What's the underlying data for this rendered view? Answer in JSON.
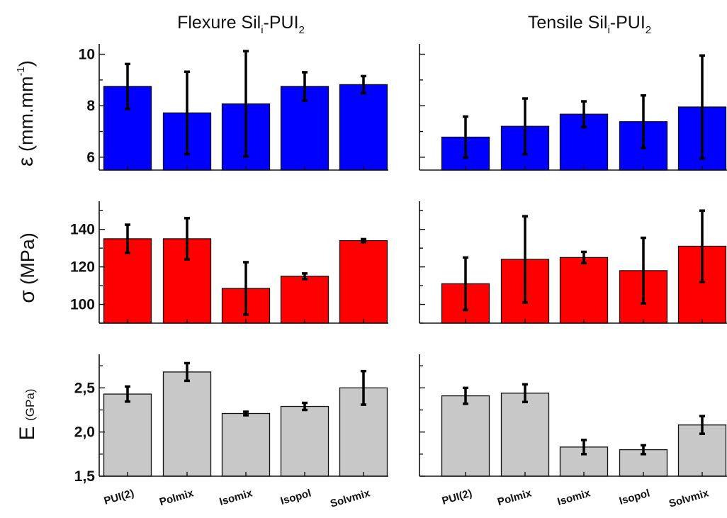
{
  "titles": {
    "left": {
      "main": "Flexure Sil",
      "sub": "i",
      "mid": "-PUI",
      "end": "2"
    },
    "right": {
      "main": "Tensile Sil",
      "sub": "i",
      "mid": "-PUI",
      "end": "2"
    }
  },
  "ylabels": {
    "strain": {
      "symbol": "ε",
      "unit": "(mm.mm",
      "sup": "-1",
      "close": ")"
    },
    "stress": {
      "symbol": "σ",
      "unit": "(MPa)"
    },
    "modulus": {
      "symbol": "E",
      "unit": "(GPa)"
    }
  },
  "colors": {
    "strain": "#0000ff",
    "stress": "#ff0000",
    "modulus": "#c8c8c8"
  },
  "chart_data": [
    {
      "type": "bar",
      "test": "Flexure",
      "quantity": "strain",
      "categories": [
        "PUI(2)",
        "Polmix",
        "Isomix",
        "Isopol",
        "Solvmix"
      ],
      "values": [
        8.75,
        7.72,
        8.07,
        8.75,
        8.82
      ],
      "errors": [
        0.87,
        1.6,
        2.05,
        0.55,
        0.33
      ],
      "ylim": [
        5.5,
        10.4
      ],
      "yticks": [
        6,
        8,
        10
      ],
      "ytick_labels": [
        "6",
        "8",
        "10"
      ]
    },
    {
      "type": "bar",
      "test": "Tensile",
      "quantity": "strain",
      "categories": [
        "PUI(2)",
        "Polmix",
        "Isomix",
        "Isopol",
        "Solvmix"
      ],
      "values": [
        6.78,
        7.2,
        7.67,
        7.38,
        7.95
      ],
      "errors": [
        0.8,
        1.08,
        0.5,
        1.02,
        2.0
      ],
      "ylim": [
        5.5,
        10.4
      ],
      "yticks": [
        6,
        8,
        10
      ],
      "ytick_labels": []
    },
    {
      "type": "bar",
      "test": "Flexure",
      "quantity": "stress",
      "categories": [
        "PUI(2)",
        "Polmix",
        "Isomix",
        "Isopol",
        "Solvmix"
      ],
      "values": [
        135,
        135,
        108.5,
        115,
        134
      ],
      "errors": [
        7.5,
        11,
        14,
        1.5,
        0.8
      ],
      "ylim": [
        90,
        155
      ],
      "yticks": [
        100,
        120,
        140
      ],
      "ytick_labels": [
        "100",
        "120",
        "140"
      ]
    },
    {
      "type": "bar",
      "test": "Tensile",
      "quantity": "stress",
      "categories": [
        "PUI(2)",
        "Polmix",
        "Isomix",
        "Isopol",
        "Solvmix"
      ],
      "values": [
        111,
        124,
        125,
        118,
        131
      ],
      "errors": [
        14,
        23,
        3,
        17.5,
        19
      ],
      "ylim": [
        90,
        155
      ],
      "yticks": [
        100,
        120,
        140
      ],
      "ytick_labels": []
    },
    {
      "type": "bar",
      "test": "Flexure",
      "quantity": "modulus",
      "categories": [
        "PUI(2)",
        "Polmix",
        "Isomix",
        "Isopol",
        "Solvmix"
      ],
      "values": [
        2.43,
        2.68,
        2.21,
        2.29,
        2.5
      ],
      "errors": [
        0.085,
        0.1,
        0.02,
        0.04,
        0.19
      ],
      "ylim": [
        1.5,
        2.88
      ],
      "yticks": [
        1.5,
        2.0,
        2.5
      ],
      "ytick_labels": [
        "1,5",
        "2,0",
        "2,5"
      ]
    },
    {
      "type": "bar",
      "test": "Tensile",
      "quantity": "modulus",
      "categories": [
        "PUI(2)",
        "Polmix",
        "Isomix",
        "Isopol",
        "Solvmix"
      ],
      "values": [
        2.41,
        2.44,
        1.83,
        1.8,
        2.08
      ],
      "errors": [
        0.09,
        0.1,
        0.08,
        0.05,
        0.1
      ],
      "ylim": [
        1.5,
        2.88
      ],
      "yticks": [
        1.5,
        2.0,
        2.5
      ],
      "ytick_labels": []
    }
  ]
}
